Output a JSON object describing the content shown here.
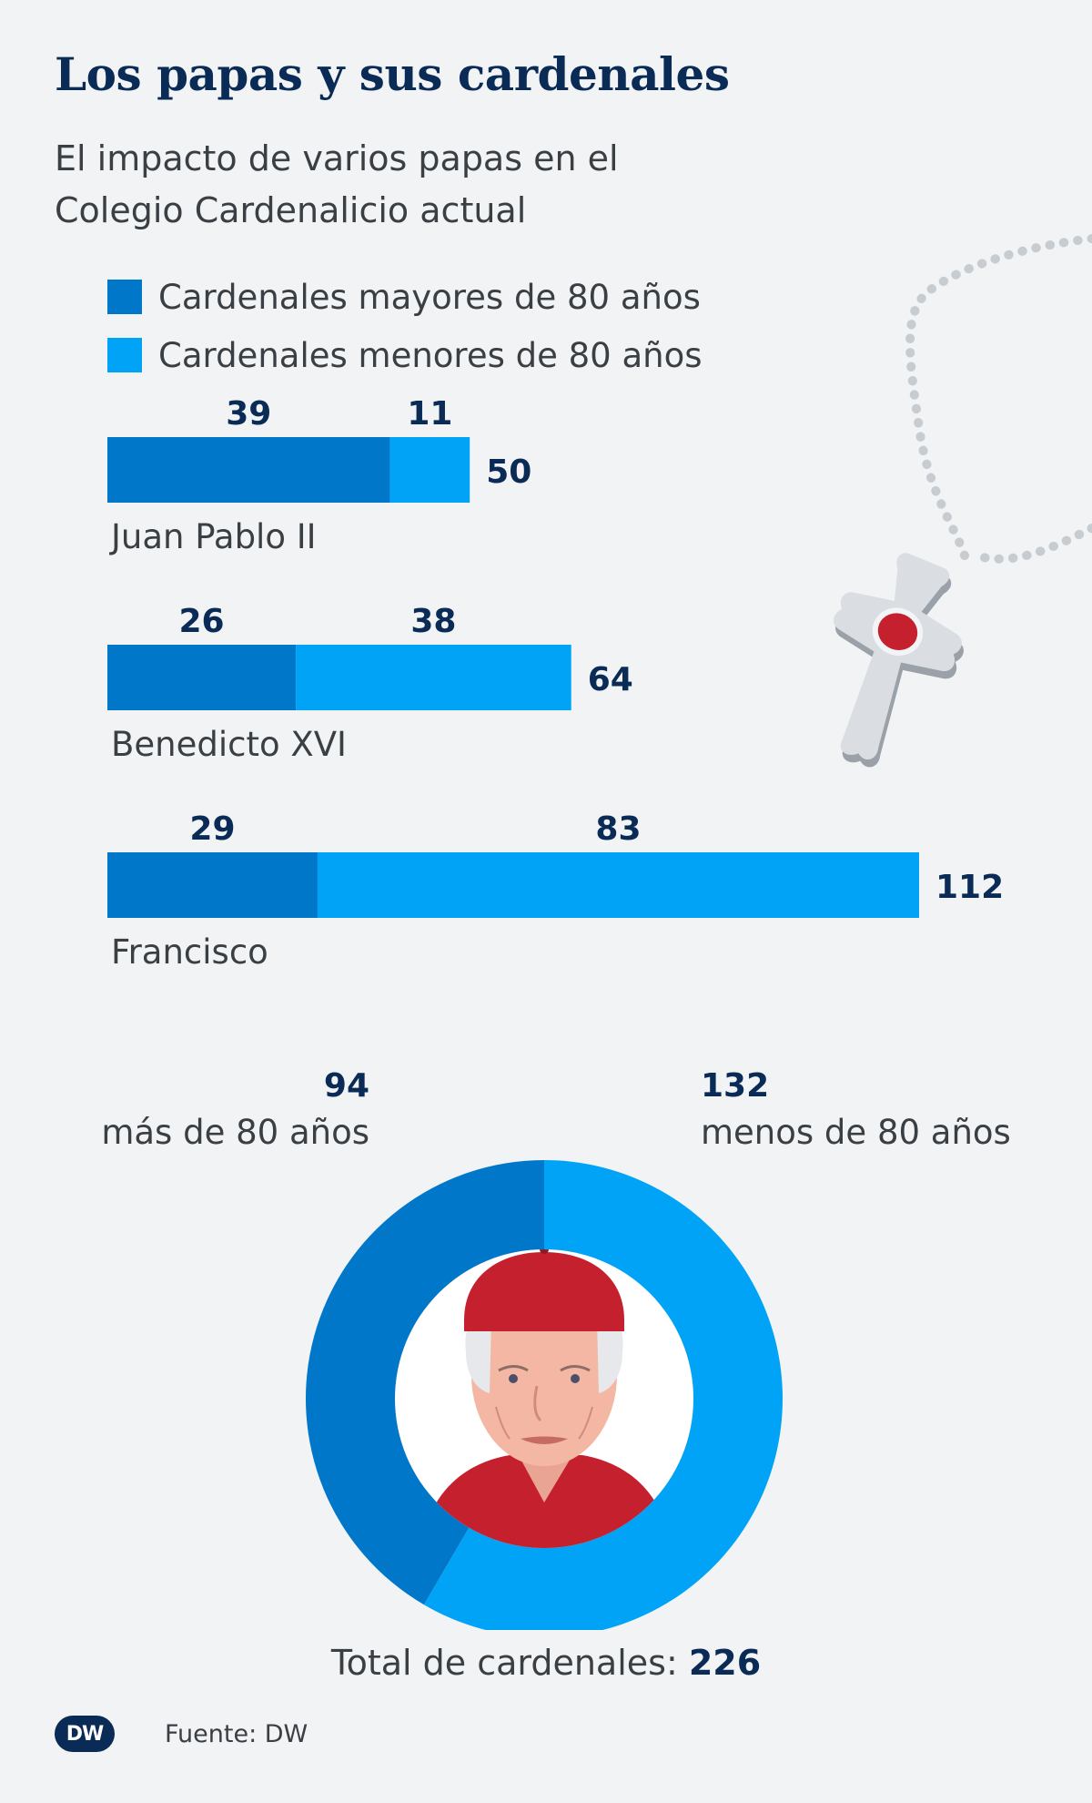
{
  "header": {
    "title": "Los papas y sus cardenales",
    "subtitle": "El impacto de varios papas en el Colegio Cardenalicio actual"
  },
  "legend": {
    "over80": "Cardenales mayores de 80 años",
    "under80": "Cardenales menores de 80 años"
  },
  "colors": {
    "over80": "#0077c8",
    "under80": "#00a3f5",
    "title": "#0a2b55",
    "background": "#f1f3f5"
  },
  "chart_data": [
    {
      "type": "bar",
      "orientation": "horizontal",
      "stacked": true,
      "categories": [
        "Juan Pablo II",
        "Benedicto XVI",
        "Francisco"
      ],
      "series": [
        {
          "name": "Cardenales mayores de 80 años",
          "values": [
            39,
            26,
            29
          ]
        },
        {
          "name": "Cardenales menores de 80 años",
          "values": [
            11,
            38,
            83
          ]
        }
      ],
      "totals": [
        50,
        64,
        112
      ],
      "xlim": [
        0,
        112
      ]
    },
    {
      "type": "pie",
      "style": "donut",
      "categories": [
        "más de 80 años",
        "menos de 80 años"
      ],
      "values": [
        94,
        132
      ],
      "total": 226
    }
  ],
  "donut": {
    "over_value": "94",
    "over_label": "más de 80 años",
    "under_value": "132",
    "under_label": "menos de 80 años"
  },
  "total": {
    "label": "Total de cardenales:",
    "value": "226"
  },
  "footer": {
    "logo": "DW",
    "source": "Fuente: DW"
  },
  "icons": [
    "rosary-cross-icon",
    "cardinal-portrait-icon",
    "dw-logo-icon"
  ]
}
